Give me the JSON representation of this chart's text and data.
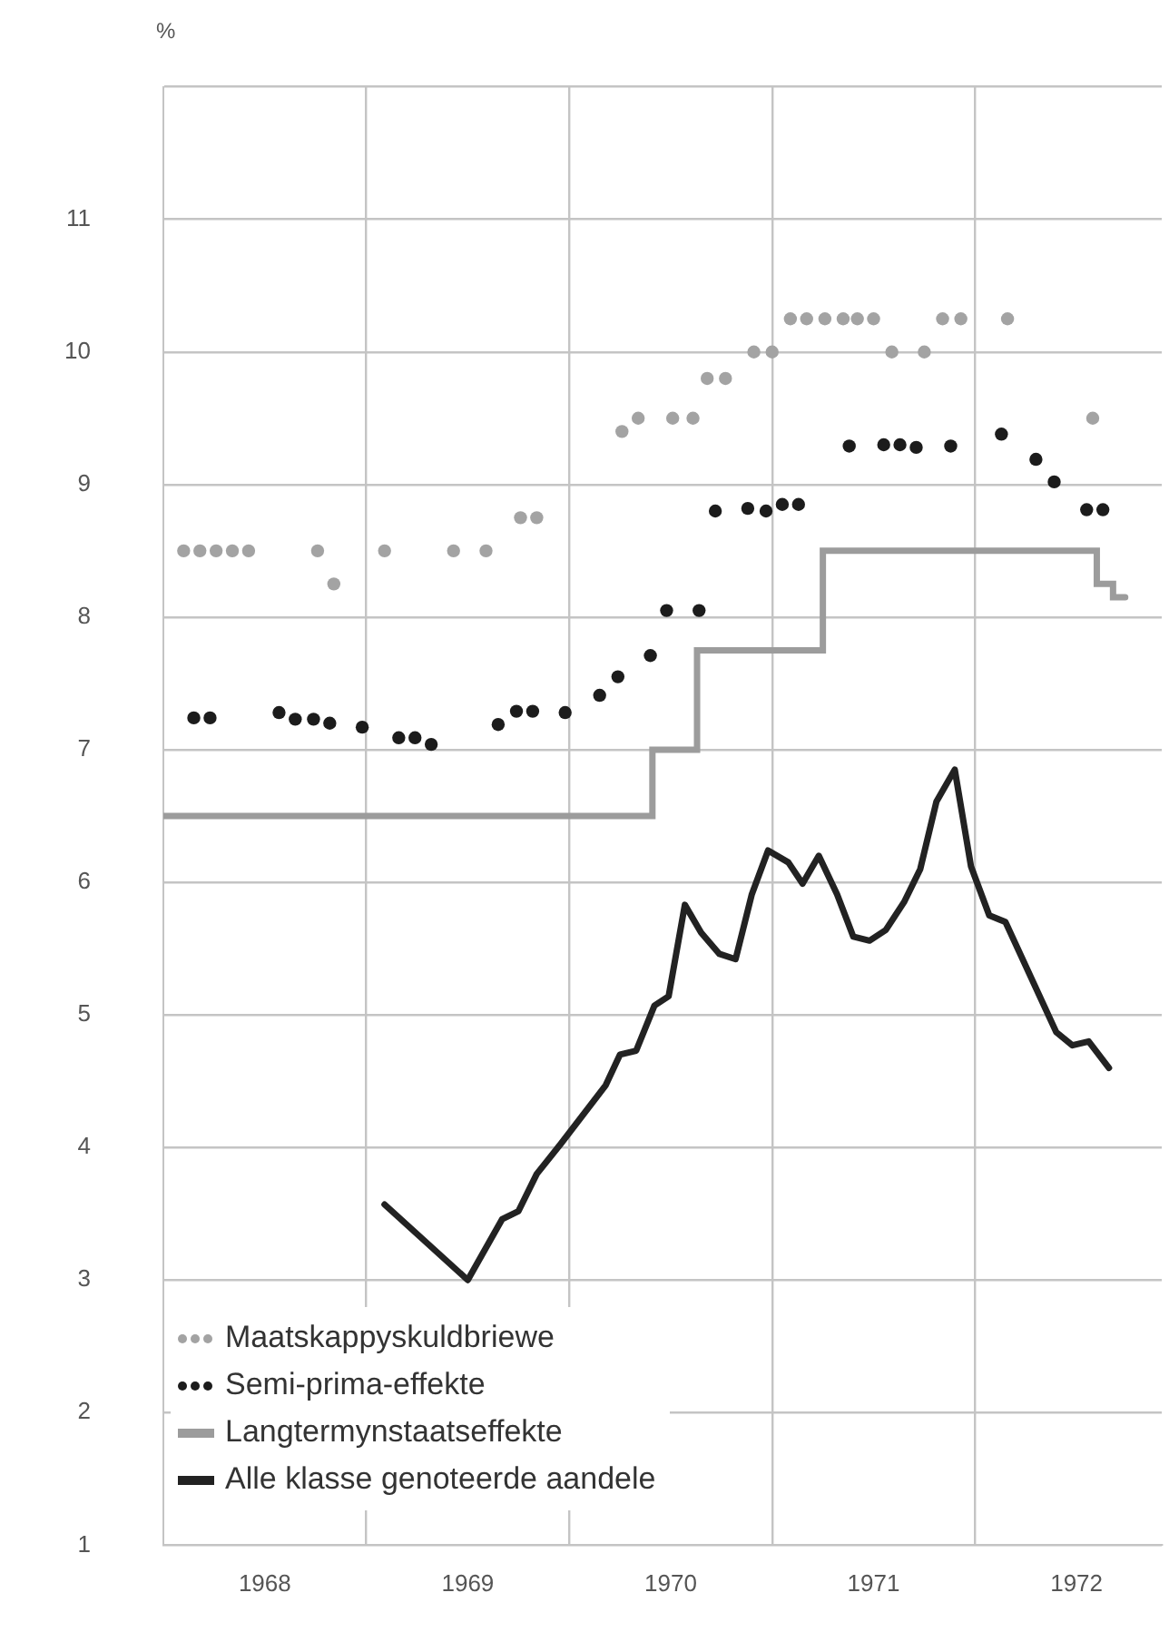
{
  "chart_data": {
    "type": "line",
    "ylabel": "%",
    "xlim": [
      1968,
      1972.92
    ],
    "ylim": [
      1,
      12
    ],
    "xticks": [
      {
        "value": 1968.5,
        "label": "1968"
      },
      {
        "value": 1969,
        "label": null
      },
      {
        "value": 1969.5,
        "label": "1969"
      },
      {
        "value": 1970,
        "label": null
      },
      {
        "value": 1970.5,
        "label": "1970"
      },
      {
        "value": 1971,
        "label": null
      },
      {
        "value": 1971.5,
        "label": "1971"
      },
      {
        "value": 1972,
        "label": null
      },
      {
        "value": 1972.5,
        "label": "1972"
      }
    ],
    "yticks": [
      1,
      2,
      3,
      4,
      5,
      6,
      7,
      8,
      9,
      10,
      11,
      {
        "value": 12,
        "label": null
      }
    ],
    "grid": true,
    "legend": "bottom left",
    "series": [
      {
        "name": "Maatskappyskuldbriewe",
        "type": "scatter",
        "marker": "circle",
        "color": "#a3a3a3",
        "x": [
          1968.1,
          1968.18,
          1968.26,
          1968.34,
          1968.42,
          1968.76,
          1968.84,
          1969.09,
          1969.43,
          1969.59,
          1969.76,
          1969.84,
          1970.26,
          1970.34,
          1970.51,
          1970.61,
          1970.68,
          1970.77,
          1970.91,
          1971.0,
          1971.09,
          1971.17,
          1971.26,
          1971.35,
          1971.42,
          1971.5,
          1971.59,
          1971.75,
          1971.84,
          1971.93,
          1972.16,
          1972.58
        ],
        "values": [
          8.5,
          8.5,
          8.5,
          8.5,
          8.5,
          8.5,
          8.25,
          8.5,
          8.5,
          8.5,
          8.75,
          8.75,
          9.4,
          9.5,
          9.5,
          9.5,
          9.8,
          9.8,
          10.0,
          10.0,
          10.25,
          10.25,
          10.25,
          10.25,
          10.25,
          10.25,
          10.0,
          10.0,
          10.25,
          10.25,
          10.25,
          9.5
        ]
      },
      {
        "name": "Semi-prima-effekte",
        "type": "scatter",
        "marker": "circle",
        "color": "#1c1c1c",
        "x": [
          1968.15,
          1968.23,
          1968.57,
          1968.65,
          1968.74,
          1968.82,
          1968.98,
          1969.16,
          1969.24,
          1969.32,
          1969.65,
          1969.74,
          1969.82,
          1969.98,
          1970.15,
          1970.24,
          1970.4,
          1970.48,
          1970.64,
          1970.72,
          1970.88,
          1970.97,
          1971.05,
          1971.13,
          1971.38,
          1971.55,
          1971.63,
          1971.71,
          1971.88,
          1972.13,
          1972.3,
          1972.39,
          1972.55,
          1972.63
        ],
        "values": [
          7.24,
          7.24,
          7.28,
          7.23,
          7.23,
          7.2,
          7.17,
          7.09,
          7.09,
          7.04,
          7.19,
          7.29,
          7.29,
          7.28,
          7.41,
          7.55,
          7.71,
          8.05,
          8.05,
          8.8,
          8.82,
          8.8,
          8.85,
          8.85,
          9.29,
          9.3,
          9.3,
          9.28,
          9.29,
          9.38,
          9.19,
          9.02,
          8.81,
          8.81
        ]
      },
      {
        "name": "Langtermynstaatseffekte",
        "type": "step",
        "marker": "none",
        "color": "#9c9c9c",
        "x": [
          1968.0,
          1970.41,
          1970.63,
          1971.25,
          1972.6,
          1972.68,
          1972.74
        ],
        "values": [
          6.5,
          7.0,
          7.75,
          8.5,
          8.25,
          8.15,
          8.15
        ]
      },
      {
        "name": "Alle klasse genoteerde aandele",
        "type": "line",
        "marker": "none",
        "color": "#222222",
        "x": [
          1969.09,
          1969.5,
          1969.67,
          1969.75,
          1969.84,
          1969.96,
          1970.18,
          1970.25,
          1970.33,
          1970.42,
          1970.49,
          1970.57,
          1970.65,
          1970.74,
          1970.82,
          1970.9,
          1970.98,
          1971.08,
          1971.15,
          1971.23,
          1971.32,
          1971.4,
          1971.48,
          1971.56,
          1971.65,
          1971.73,
          1971.81,
          1971.9,
          1971.98,
          1972.07,
          1972.15,
          1972.4,
          1972.48,
          1972.56,
          1972.66
        ],
        "values": [
          3.57,
          3.0,
          3.46,
          3.52,
          3.8,
          4.03,
          4.47,
          4.7,
          4.73,
          5.07,
          5.14,
          5.83,
          5.62,
          5.46,
          5.42,
          5.91,
          6.24,
          6.15,
          5.99,
          6.2,
          5.91,
          5.59,
          5.56,
          5.64,
          5.85,
          6.1,
          6.61,
          6.85,
          6.12,
          5.75,
          5.7,
          4.87,
          4.77,
          4.8,
          4.6
        ]
      }
    ]
  }
}
